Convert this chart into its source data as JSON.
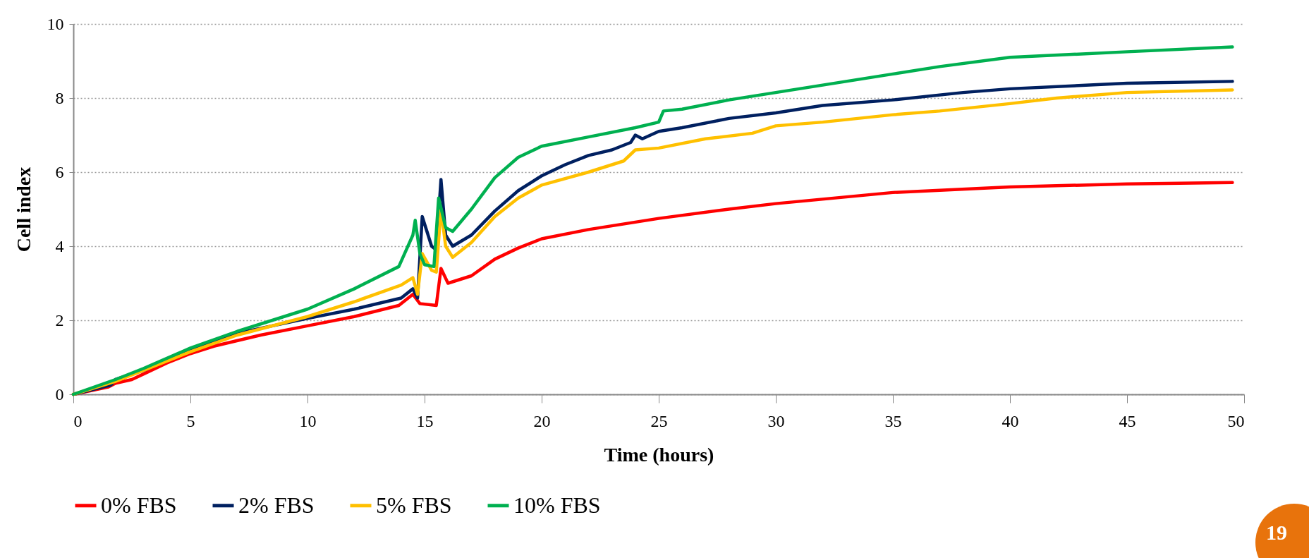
{
  "chart_data": {
    "type": "line",
    "xlabel": "Time (hours)",
    "ylabel": "Cell index",
    "xlim": [
      0,
      50
    ],
    "ylim": [
      0,
      10
    ],
    "xticks": [
      0,
      5,
      10,
      15,
      20,
      25,
      30,
      35,
      40,
      45,
      50
    ],
    "yticks": [
      0,
      2,
      4,
      6,
      8,
      10
    ],
    "grid": "y",
    "legend": "bottom",
    "line_style": "solid",
    "marker": "none",
    "annotations": [
      "19"
    ],
    "series": [
      {
        "name": "0% FBS",
        "color": "#ff0000",
        "x": [
          0,
          1.5,
          1.8,
          2.5,
          3,
          4,
          5,
          6,
          8,
          10,
          12,
          13.9,
          14.5,
          14.8,
          15.5,
          15.7,
          16,
          17,
          18,
          19,
          20,
          22,
          25,
          28,
          30,
          35,
          40,
          45,
          49.5
        ],
        "values": [
          0,
          0.2,
          0.3,
          0.4,
          0.55,
          0.85,
          1.1,
          1.3,
          1.6,
          1.85,
          2.1,
          2.4,
          2.7,
          2.45,
          2.4,
          3.4,
          3.0,
          3.2,
          3.65,
          3.95,
          4.2,
          4.45,
          4.75,
          5.0,
          5.15,
          5.45,
          5.6,
          5.68,
          5.72
        ]
      },
      {
        "name": "2% FBS",
        "color": "#002060",
        "x": [
          0,
          1.6,
          1.8,
          3,
          5,
          7,
          10,
          12,
          14,
          14.5,
          14.7,
          14.9,
          15.3,
          15.5,
          15.7,
          15.9,
          16.2,
          17,
          18,
          19,
          20,
          21,
          22,
          23,
          23.8,
          24,
          24.3,
          25,
          26,
          28,
          30,
          32,
          35,
          38,
          40,
          45,
          49.5
        ],
        "values": [
          0,
          0.25,
          0.4,
          0.65,
          1.2,
          1.65,
          2.05,
          2.3,
          2.6,
          2.85,
          2.6,
          4.8,
          4.0,
          3.9,
          5.8,
          4.3,
          4.0,
          4.3,
          4.95,
          5.5,
          5.9,
          6.2,
          6.45,
          6.6,
          6.8,
          7.0,
          6.9,
          7.1,
          7.2,
          7.45,
          7.6,
          7.8,
          7.95,
          8.15,
          8.25,
          8.4,
          8.45
        ]
      },
      {
        "name": "5% FBS",
        "color": "#ffc000",
        "x": [
          0,
          1.8,
          3,
          5,
          7,
          10,
          12,
          14,
          14.5,
          14.7,
          14.9,
          15.3,
          15.5,
          15.7,
          15.9,
          16.2,
          17,
          18,
          19,
          20,
          22,
          23.5,
          24,
          25,
          27,
          29,
          30,
          32,
          35,
          37,
          40,
          42,
          45,
          49.5
        ],
        "values": [
          0,
          0.35,
          0.65,
          1.15,
          1.6,
          2.1,
          2.5,
          2.95,
          3.15,
          2.7,
          3.8,
          3.35,
          3.3,
          5.0,
          4.0,
          3.7,
          4.1,
          4.8,
          5.3,
          5.65,
          6.0,
          6.3,
          6.6,
          6.65,
          6.9,
          7.05,
          7.25,
          7.35,
          7.55,
          7.65,
          7.85,
          8.0,
          8.15,
          8.22
        ]
      },
      {
        "name": "10% FBS",
        "color": "#00b050",
        "x": [
          0,
          1.8,
          3,
          5,
          7,
          10,
          12,
          13.9,
          14.5,
          14.6,
          14.8,
          15,
          15.4,
          15.6,
          15.9,
          16.2,
          17,
          18,
          19,
          20,
          22,
          24,
          25,
          25.2,
          26,
          28,
          30,
          32,
          35,
          37,
          40,
          45,
          49.5
        ],
        "values": [
          0,
          0.4,
          0.7,
          1.25,
          1.7,
          2.3,
          2.85,
          3.45,
          4.3,
          4.7,
          3.8,
          3.5,
          3.45,
          5.3,
          4.5,
          4.4,
          5.0,
          5.85,
          6.4,
          6.7,
          6.95,
          7.2,
          7.35,
          7.65,
          7.7,
          7.95,
          8.15,
          8.35,
          8.65,
          8.85,
          9.1,
          9.25,
          9.38
        ]
      }
    ]
  }
}
